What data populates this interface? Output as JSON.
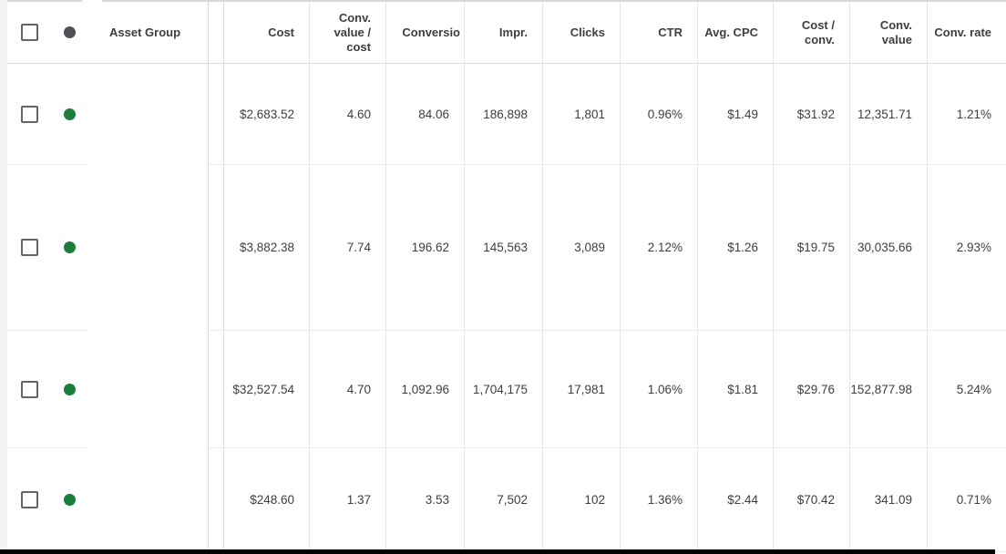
{
  "header": {
    "asset_group_label": "Asset Group",
    "columns": [
      "Cost",
      "Conv. value / cost",
      "Conversio",
      "Impr.",
      "Clicks",
      "CTR",
      "Avg. CPC",
      "Cost / conv.",
      "Conv. value",
      "Conv. rate"
    ]
  },
  "rows": [
    {
      "status": "enabled",
      "asset_group": "",
      "cells": [
        "$2,683.52",
        "4.60",
        "84.06",
        "186,898",
        "1,801",
        "0.96%",
        "$1.49",
        "$31.92",
        "12,351.71",
        "1.21%"
      ]
    },
    {
      "status": "enabled",
      "asset_group": "",
      "cells": [
        "$3,882.38",
        "7.74",
        "196.62",
        "145,563",
        "3,089",
        "2.12%",
        "$1.26",
        "$19.75",
        "30,035.66",
        "2.93%"
      ]
    },
    {
      "status": "enabled",
      "asset_group": "",
      "cells": [
        "$32,527.54",
        "4.70",
        "1,092.96",
        "1,704,175",
        "17,981",
        "1.06%",
        "$1.81",
        "$29.76",
        "152,877.98",
        "5.24%"
      ]
    },
    {
      "status": "enabled",
      "asset_group": "",
      "cells": [
        "$248.60",
        "1.37",
        "3.53",
        "7,502",
        "102",
        "1.36%",
        "$2.44",
        "$70.42",
        "341.09",
        "0.71%"
      ]
    }
  ],
  "colors": {
    "status_enabled_green": "#188038",
    "header_status_dot_gray": "#4d5156"
  }
}
